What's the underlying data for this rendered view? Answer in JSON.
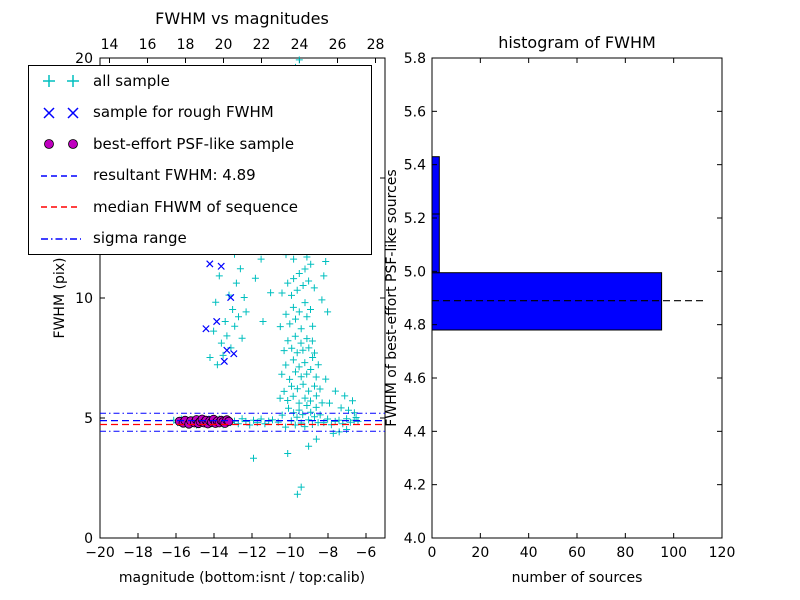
{
  "chart_data": [
    {
      "type": "scatter",
      "title": "FWHM vs magnitudes",
      "xlabel": "magnitude (bottom:isnt / top:calib)",
      "ylabel": "FWHM (pix)",
      "xlim": [
        -20,
        -5
      ],
      "ylim": [
        0,
        20
      ],
      "xticks": [
        -20,
        -18,
        -16,
        -14,
        -12,
        -10,
        -8,
        -6
      ],
      "yticks": [
        0,
        5,
        10,
        15,
        20
      ],
      "top_axis": {
        "lim": [
          13.5,
          28.5
        ],
        "ticks": [
          14,
          16,
          18,
          20,
          22,
          24,
          26,
          28
        ]
      },
      "legend_position": "upper-left",
      "series": [
        {
          "name": "all sample",
          "marker": "plus",
          "color": "#00bfbf",
          "points": [
            [
              -10.62,
              4.83
            ],
            [
              -10.41,
              5.12
            ],
            [
              -10.23,
              4.62
            ],
            [
              -10.08,
              5.41
            ],
            [
              -9.93,
              4.88
            ],
            [
              -9.81,
              5.22
            ],
            [
              -9.72,
              4.71
            ],
            [
              -9.63,
              5.03
            ],
            [
              -9.52,
              5.33
            ],
            [
              -9.41,
              4.79
            ],
            [
              -9.33,
              5.14
            ],
            [
              -9.22,
              4.64
            ],
            [
              -9.11,
              5.52
            ],
            [
              -9.02,
              4.92
            ],
            [
              -8.91,
              5.24
            ],
            [
              -8.82,
              4.73
            ],
            [
              -8.71,
              5.05
            ],
            [
              -8.62,
              5.44
            ],
            [
              -8.52,
              4.81
            ],
            [
              -8.41,
              5.13
            ],
            [
              -10.52,
              5.82
            ],
            [
              -10.31,
              6.11
            ],
            [
              -10.12,
              5.73
            ],
            [
              -9.92,
              6.32
            ],
            [
              -9.83,
              5.91
            ],
            [
              -9.61,
              6.22
            ],
            [
              -9.52,
              5.62
            ],
            [
              -9.31,
              6.41
            ],
            [
              -9.21,
              5.83
            ],
            [
              -9.02,
              6.12
            ],
            [
              -8.92,
              5.71
            ],
            [
              -8.71,
              6.33
            ],
            [
              -8.61,
              5.92
            ],
            [
              -8.42,
              6.21
            ],
            [
              -8.31,
              5.63
            ],
            [
              -10.43,
              6.82
            ],
            [
              -10.22,
              7.21
            ],
            [
              -10.02,
              6.61
            ],
            [
              -9.82,
              7.42
            ],
            [
              -9.71,
              6.92
            ],
            [
              -9.52,
              7.13
            ],
            [
              -9.41,
              6.72
            ],
            [
              -9.22,
              7.31
            ],
            [
              -9.12,
              6.83
            ],
            [
              -8.91,
              7.02
            ],
            [
              -8.81,
              7.52
            ],
            [
              -8.62,
              6.71
            ],
            [
              -8.51,
              7.22
            ],
            [
              -10.31,
              7.81
            ],
            [
              -10.11,
              8.22
            ],
            [
              -9.91,
              7.91
            ],
            [
              -9.72,
              8.41
            ],
            [
              -9.62,
              7.72
            ],
            [
              -9.42,
              8.12
            ],
            [
              -9.32,
              7.82
            ],
            [
              -9.11,
              8.31
            ],
            [
              -9.01,
              7.92
            ],
            [
              -8.82,
              8.21
            ],
            [
              -8.71,
              7.71
            ],
            [
              -10.51,
              8.81
            ],
            [
              -10.21,
              9.32
            ],
            [
              -10.01,
              8.92
            ],
            [
              -9.82,
              9.61
            ],
            [
              -9.71,
              9.12
            ],
            [
              -9.51,
              9.42
            ],
            [
              -9.41,
              8.72
            ],
            [
              -9.21,
              9.81
            ],
            [
              -9.11,
              9.22
            ],
            [
              -8.92,
              9.52
            ],
            [
              -8.81,
              8.82
            ],
            [
              -10.42,
              10.21
            ],
            [
              -10.12,
              10.62
            ],
            [
              -9.92,
              10.11
            ],
            [
              -9.81,
              10.81
            ],
            [
              -9.62,
              10.32
            ],
            [
              -9.51,
              11.02
            ],
            [
              -9.31,
              10.52
            ],
            [
              -9.21,
              11.21
            ],
            [
              -9.02,
              10.71
            ],
            [
              -8.91,
              11.41
            ],
            [
              -8.72,
              10.42
            ],
            [
              -10.21,
              11.81
            ],
            [
              -10.01,
              12.31
            ],
            [
              -9.81,
              11.62
            ],
            [
              -9.71,
              12.61
            ],
            [
              -9.51,
              12.02
            ],
            [
              -9.41,
              12.81
            ],
            [
              -9.21,
              12.21
            ],
            [
              -9.11,
              11.71
            ],
            [
              -8.92,
              12.51
            ],
            [
              -9.91,
              13.21
            ],
            [
              -9.82,
              13.81
            ],
            [
              -9.71,
              14.42
            ],
            [
              -9.62,
              13.52
            ],
            [
              -9.52,
              14.91
            ],
            [
              -9.41,
              13.92
            ],
            [
              -9.32,
              14.31
            ],
            [
              -9.61,
              15.41
            ],
            [
              -9.52,
              15.92
            ],
            [
              -9.72,
              16.31
            ],
            [
              -9.42,
              15.22
            ],
            [
              -9.81,
              16.72
            ],
            [
              -9.31,
              16.12
            ],
            [
              -10.11,
              14.12
            ],
            [
              -10.31,
              13.42
            ],
            [
              -9.21,
              15.61
            ],
            [
              -9.12,
              14.72
            ],
            [
              -10.02,
              16.52
            ],
            [
              -9.81,
              17.32
            ],
            [
              -9.61,
              17.81
            ],
            [
              -9.41,
              17.52
            ],
            [
              -9.21,
              18.12
            ],
            [
              -9.02,
              17.92
            ],
            [
              -8.81,
              18.42
            ],
            [
              -9.52,
              18.81
            ],
            [
              -9.31,
              19.22
            ],
            [
              -9.71,
              19.61
            ],
            [
              -9.11,
              19.02
            ],
            [
              -8.91,
              19.42
            ],
            [
              -9.51,
              19.92
            ],
            [
              -8.61,
              18.71
            ],
            [
              -8.41,
              17.61
            ],
            [
              -13.82,
              7.22
            ],
            [
              -13.61,
              8.12
            ],
            [
              -13.52,
              7.61
            ],
            [
              -13.41,
              9.02
            ],
            [
              -13.32,
              8.42
            ],
            [
              -13.21,
              10.12
            ],
            [
              -13.11,
              7.92
            ],
            [
              -13.02,
              9.52
            ],
            [
              -12.91,
              8.82
            ],
            [
              -12.82,
              10.62
            ],
            [
              -12.71,
              9.22
            ],
            [
              -12.61,
              11.22
            ],
            [
              -12.52,
              8.32
            ],
            [
              -12.41,
              10.02
            ],
            [
              -12.31,
              9.42
            ],
            [
              -13.72,
              10.92
            ],
            [
              -13.91,
              9.82
            ],
            [
              -12.92,
              11.82
            ],
            [
              -13.22,
              12.32
            ],
            [
              -12.62,
              12.02
            ],
            [
              -14.02,
              8.62
            ],
            [
              -14.21,
              7.52
            ],
            [
              -16.12,
              4.91
            ],
            [
              -15.92,
              4.81
            ],
            [
              -15.72,
              4.96
            ],
            [
              -15.52,
              4.76
            ],
            [
              -15.32,
              4.86
            ],
            [
              -15.12,
              4.92
            ],
            [
              -14.92,
              4.71
            ],
            [
              -14.72,
              4.97
            ],
            [
              -14.52,
              4.82
            ],
            [
              -14.32,
              4.91
            ],
            [
              -14.12,
              4.76
            ],
            [
              -13.92,
              4.86
            ],
            [
              -13.72,
              4.96
            ],
            [
              -13.52,
              4.72
            ],
            [
              -13.32,
              4.92
            ],
            [
              -13.12,
              4.81
            ],
            [
              -12.92,
              4.87
            ],
            [
              -12.72,
              4.76
            ],
            [
              -12.52,
              4.97
            ],
            [
              -12.32,
              4.86
            ],
            [
              -12.12,
              4.71
            ],
            [
              -11.92,
              4.91
            ],
            [
              -11.72,
              4.81
            ],
            [
              -11.52,
              4.96
            ],
            [
              -11.32,
              4.76
            ],
            [
              -11.12,
              4.87
            ],
            [
              -10.92,
              4.92
            ],
            [
              -8.22,
              4.81
            ],
            [
              -8.02,
              4.96
            ],
            [
              -7.82,
              4.72
            ],
            [
              -7.62,
              4.86
            ],
            [
              -7.42,
              4.91
            ],
            [
              -7.22,
              4.76
            ],
            [
              -7.02,
              4.97
            ],
            [
              -6.82,
              4.82
            ],
            [
              -6.62,
              4.91
            ],
            [
              -6.42,
              4.86
            ],
            [
              -7.92,
              5.62
            ],
            [
              -7.61,
              6.12
            ],
            [
              -7.31,
              5.42
            ],
            [
              -7.12,
              5.92
            ],
            [
              -6.92,
              5.32
            ],
            [
              -6.71,
              5.72
            ],
            [
              -7.41,
              4.42
            ],
            [
              -7.02,
              4.52
            ],
            [
              -6.61,
              5.22
            ],
            [
              -8.12,
              6.62
            ],
            [
              -7.72,
              4.36
            ],
            [
              -6.52,
              5.02
            ],
            [
              -9.61,
              1.82
            ],
            [
              -9.41,
              2.12
            ],
            [
              -10.12,
              3.52
            ],
            [
              -11.92,
              3.32
            ],
            [
              -9.02,
              3.82
            ],
            [
              -8.61,
              4.12
            ],
            [
              -11.82,
              10.82
            ],
            [
              -11.52,
              11.62
            ],
            [
              -11.22,
              12.42
            ],
            [
              -11.02,
              10.22
            ],
            [
              -11.42,
              9.02
            ],
            [
              -11.62,
              13.12
            ],
            [
              -12.12,
              12.92
            ],
            [
              -8.32,
              9.92
            ],
            [
              -8.22,
              10.92
            ],
            [
              -8.02,
              9.42
            ],
            [
              -8.42,
              12.12
            ],
            [
              -8.12,
              11.52
            ]
          ]
        },
        {
          "name": "sample for rough FWHM",
          "marker": "x",
          "color": "#0000ff",
          "points": [
            [
              -14.22,
              11.42
            ],
            [
              -13.62,
              11.32
            ],
            [
              -13.12,
              10.02
            ],
            [
              -13.86,
              9.02
            ],
            [
              -14.42,
              8.72
            ],
            [
              -13.32,
              7.82
            ],
            [
              -12.96,
              7.68
            ],
            [
              -13.46,
              7.36
            ],
            [
              -14.72,
              4.92
            ],
            [
              -14.12,
              4.96
            ],
            [
              -13.62,
              4.86
            ]
          ]
        },
        {
          "name": "best-effort PSF-like sample",
          "marker": "circle",
          "fill": "#bf00bf",
          "edge": "#000000",
          "points": [
            [
              -15.82,
              4.86
            ],
            [
              -15.62,
              4.79
            ],
            [
              -15.52,
              4.9
            ],
            [
              -15.32,
              4.75
            ],
            [
              -15.22,
              4.88
            ],
            [
              -15.02,
              4.8
            ],
            [
              -14.92,
              4.93
            ],
            [
              -14.82,
              4.77
            ],
            [
              -14.72,
              4.86
            ],
            [
              -14.62,
              4.95
            ],
            [
              -14.52,
              4.8
            ],
            [
              -14.42,
              4.9
            ],
            [
              -14.32,
              4.76
            ],
            [
              -14.22,
              4.88
            ],
            [
              -14.12,
              4.82
            ],
            [
              -14.02,
              4.94
            ],
            [
              -13.92,
              4.78
            ],
            [
              -13.82,
              4.87
            ],
            [
              -13.72,
              4.8
            ],
            [
              -13.62,
              4.9
            ],
            [
              -13.52,
              4.84
            ],
            [
              -13.42,
              4.78
            ],
            [
              -13.32,
              4.92
            ],
            [
              -13.22,
              4.86
            ]
          ]
        }
      ],
      "lines": {
        "resultant": {
          "label": "resultant FWHM: 4.89",
          "y": 4.89,
          "color": "#0000ff",
          "style": "dashed"
        },
        "median": {
          "label": "median FHWM of sequence",
          "y": 4.73,
          "color": "#ff0000",
          "style": "dashed"
        },
        "sigma": {
          "label": "sigma range",
          "y_upper": 5.2,
          "y_lower": 4.45,
          "color": "#0000ff",
          "style": "dashdot"
        }
      }
    },
    {
      "type": "bar-horizontal",
      "title": "histogram of FWHM",
      "xlabel": "number of sources",
      "ylabel": "FWHM of best-effort PSF-like sources",
      "xlim": [
        0,
        120
      ],
      "ylim": [
        4.0,
        5.8
      ],
      "xticks": [
        0,
        20,
        40,
        60,
        80,
        100,
        120
      ],
      "yticks": [
        4.0,
        4.2,
        4.4,
        4.6,
        4.8,
        5.0,
        5.2,
        5.4,
        5.6,
        5.8
      ],
      "bar_color": "#0000ff",
      "bars": [
        {
          "y0": 4.78,
          "y1": 4.995,
          "count": 95
        },
        {
          "y0": 4.995,
          "y1": 5.215,
          "count": 3
        },
        {
          "y0": 5.215,
          "y1": 5.43,
          "count": 3
        }
      ],
      "median_line": {
        "y": 4.89,
        "color": "#000000",
        "style": "dashed",
        "x_start": 0,
        "x_end": 113
      }
    }
  ]
}
